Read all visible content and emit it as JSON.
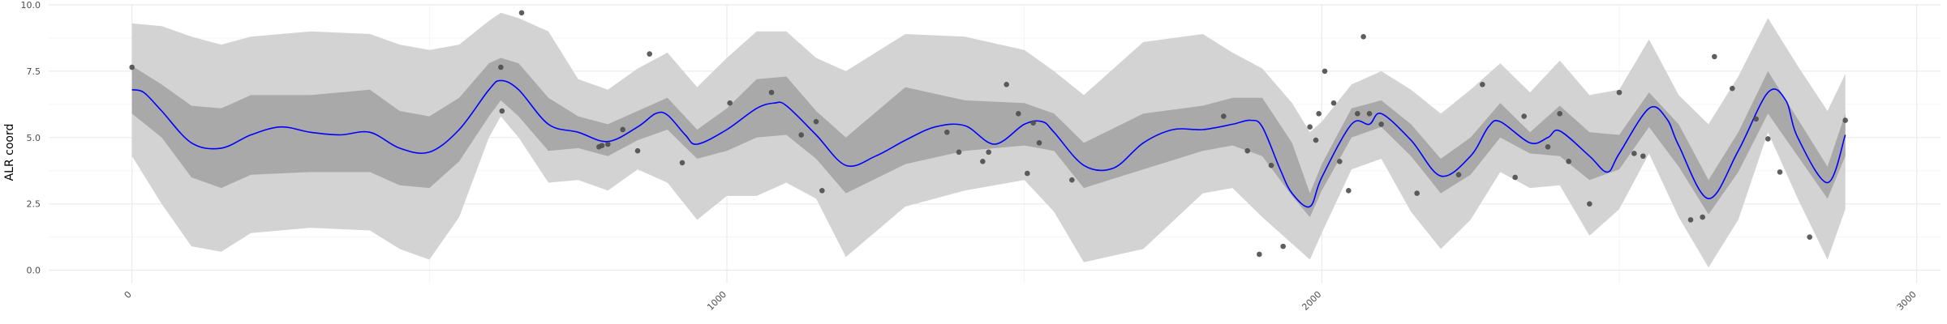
{
  "chart_data": {
    "type": "line",
    "title": "",
    "xlabel": "",
    "ylabel": "ALR coord",
    "xlim": [
      -140,
      3040
    ],
    "ylim": [
      -0.5,
      10.0
    ],
    "x_ticks": [
      0,
      1000,
      2000,
      3000
    ],
    "x_tick_labels": [
      "0",
      "1000",
      "2000",
      "3000"
    ],
    "y_ticks": [
      0.0,
      2.5,
      5.0,
      7.5,
      10.0
    ],
    "y_tick_labels": [
      "0.0",
      "2.5",
      "5.0",
      "7.5",
      "10.0"
    ],
    "grid": true,
    "legend": "none",
    "colors": {
      "mean_line": "#0000ff",
      "inner_band": "#a9a9a9",
      "outer_band": "#d3d3d3",
      "points": "#4d4d4d",
      "grid_major": "#ebebeb",
      "grid_minor": "#f5f5f5"
    },
    "mean_curve": {
      "x": [
        0,
        20,
        50,
        100,
        150,
        200,
        250,
        300,
        350,
        400,
        450,
        500,
        550,
        600,
        620,
        650,
        700,
        750,
        800,
        850,
        880,
        900,
        930,
        950,
        1000,
        1050,
        1080,
        1100,
        1150,
        1200,
        1250,
        1300,
        1350,
        1400,
        1450,
        1500,
        1530,
        1550,
        1600,
        1650,
        1700,
        1750,
        1800,
        1850,
        1880,
        1900,
        1930,
        1950,
        1980,
        2000,
        2050,
        2080,
        2100,
        2150,
        2200,
        2250,
        2280,
        2300,
        2350,
        2380,
        2400,
        2450,
        2480,
        2500,
        2550,
        2580,
        2600,
        2650,
        2700,
        2750,
        2780,
        2800,
        2850,
        2880
      ],
      "y": [
        6.8,
        6.7,
        6.0,
        4.8,
        4.6,
        5.1,
        5.4,
        5.2,
        5.1,
        5.2,
        4.6,
        4.45,
        5.3,
        6.8,
        7.15,
        6.8,
        5.5,
        5.2,
        4.85,
        5.4,
        5.9,
        5.85,
        5.1,
        4.75,
        5.3,
        6.1,
        6.3,
        6.2,
        5.1,
        3.95,
        4.3,
        4.9,
        5.4,
        5.45,
        4.75,
        5.5,
        5.6,
        5.2,
        3.95,
        3.85,
        4.8,
        5.3,
        5.3,
        5.5,
        5.65,
        5.4,
        3.8,
        2.9,
        2.4,
        3.5,
        5.5,
        5.5,
        5.9,
        4.9,
        3.55,
        4.3,
        5.4,
        5.6,
        4.8,
        5.0,
        5.25,
        4.3,
        3.7,
        4.4,
        6.1,
        5.7,
        4.7,
        2.7,
        4.5,
        6.7,
        6.4,
        5.0,
        3.3,
        5.1
      ]
    },
    "inner_band": {
      "x": [
        0,
        50,
        100,
        150,
        200,
        300,
        400,
        450,
        500,
        550,
        600,
        620,
        650,
        700,
        750,
        800,
        850,
        900,
        950,
        1000,
        1050,
        1100,
        1150,
        1200,
        1300,
        1400,
        1500,
        1550,
        1600,
        1700,
        1800,
        1850,
        1900,
        1950,
        1980,
        2000,
        2050,
        2100,
        2150,
        2200,
        2250,
        2300,
        2350,
        2400,
        2450,
        2500,
        2550,
        2600,
        2650,
        2700,
        2750,
        2800,
        2850,
        2880
      ],
      "lower": [
        5.9,
        5.0,
        3.5,
        3.1,
        3.6,
        3.7,
        3.7,
        3.2,
        3.1,
        4.1,
        5.8,
        6.4,
        5.8,
        4.5,
        4.6,
        4.3,
        4.9,
        5.3,
        4.2,
        4.5,
        5.0,
        5.1,
        4.2,
        2.9,
        4.0,
        4.5,
        4.7,
        4.5,
        3.1,
        3.8,
        4.5,
        4.7,
        4.3,
        2.8,
        2.0,
        3.0,
        5.0,
        5.4,
        4.3,
        2.9,
        3.6,
        5.0,
        4.4,
        4.3,
        3.4,
        3.8,
        5.4,
        3.9,
        2.1,
        3.7,
        5.9,
        4.3,
        2.7,
        4.3
      ],
      "upper": [
        7.7,
        7.0,
        6.2,
        6.1,
        6.6,
        6.6,
        6.8,
        6.0,
        5.8,
        6.5,
        7.8,
        8.0,
        7.8,
        6.5,
        5.8,
        5.5,
        6.0,
        6.5,
        5.3,
        6.1,
        7.2,
        7.3,
        6.0,
        5.0,
        6.9,
        6.4,
        6.3,
        5.9,
        4.8,
        5.9,
        6.2,
        6.5,
        6.5,
        4.8,
        2.9,
        4.0,
        6.1,
        6.4,
        5.5,
        4.2,
        5.0,
        6.3,
        5.2,
        6.2,
        5.2,
        5.1,
        6.7,
        5.5,
        3.4,
        5.2,
        7.5,
        5.7,
        3.9,
        5.9
      ]
    },
    "outer_band": {
      "x": [
        0,
        50,
        100,
        150,
        200,
        300,
        400,
        450,
        500,
        550,
        600,
        620,
        650,
        700,
        750,
        800,
        850,
        900,
        950,
        1000,
        1050,
        1100,
        1150,
        1200,
        1300,
        1400,
        1500,
        1550,
        1600,
        1700,
        1800,
        1850,
        1900,
        1950,
        1980,
        2000,
        2050,
        2100,
        2150,
        2200,
        2250,
        2300,
        2350,
        2400,
        2450,
        2500,
        2550,
        2600,
        2650,
        2700,
        2750,
        2800,
        2850,
        2880
      ],
      "lower": [
        4.3,
        2.5,
        0.9,
        0.7,
        1.4,
        1.6,
        1.5,
        0.8,
        0.4,
        2.0,
        5.0,
        5.8,
        5.0,
        3.3,
        3.4,
        3.0,
        3.8,
        3.3,
        1.9,
        2.8,
        2.8,
        3.3,
        2.7,
        0.5,
        2.4,
        3.0,
        3.4,
        2.2,
        0.3,
        0.8,
        2.9,
        3.1,
        2.0,
        1.0,
        0.4,
        1.4,
        3.8,
        4.2,
        2.2,
        0.8,
        1.9,
        3.7,
        3.1,
        3.2,
        1.3,
        2.3,
        4.4,
        2.0,
        0.1,
        1.9,
        5.2,
        2.7,
        0.4,
        2.3
      ],
      "upper": [
        9.3,
        9.2,
        8.8,
        8.5,
        8.8,
        9.0,
        8.9,
        8.5,
        8.3,
        8.5,
        9.4,
        9.7,
        9.5,
        9.0,
        7.2,
        6.8,
        7.6,
        8.2,
        6.9,
        8.0,
        9.0,
        9.0,
        8.0,
        7.5,
        8.9,
        8.8,
        8.3,
        7.5,
        6.6,
        8.6,
        8.9,
        8.2,
        7.6,
        6.3,
        5.2,
        5.6,
        7.0,
        7.5,
        6.8,
        5.9,
        6.8,
        7.8,
        6.7,
        7.9,
        6.6,
        6.8,
        8.7,
        6.6,
        5.5,
        7.3,
        9.5,
        7.7,
        6.0,
        7.4
      ]
    },
    "points": {
      "x": [
        0,
        620,
        622,
        655,
        785,
        790,
        800,
        825,
        850,
        870,
        925,
        1005,
        1075,
        1125,
        1150,
        1160,
        1370,
        1390,
        1430,
        1440,
        1470,
        1490,
        1505,
        1515,
        1525,
        1580,
        1835,
        1875,
        1895,
        1915,
        1935,
        1980,
        1990,
        1995,
        2005,
        2020,
        2030,
        2045,
        2060,
        2070,
        2080,
        2100,
        2160,
        2230,
        2270,
        2325,
        2340,
        2380,
        2400,
        2415,
        2450,
        2500,
        2525,
        2540,
        2620,
        2640,
        2660,
        2690,
        2730,
        2750,
        2770,
        2820,
        2880
      ],
      "y": [
        7.65,
        7.65,
        6.0,
        9.7,
        4.65,
        4.7,
        4.75,
        5.3,
        4.5,
        8.15,
        4.05,
        6.3,
        6.7,
        5.1,
        5.6,
        3.0,
        5.2,
        4.45,
        4.1,
        4.45,
        7.0,
        5.9,
        3.65,
        5.55,
        4.8,
        3.4,
        5.8,
        4.5,
        0.6,
        3.95,
        0.9,
        5.4,
        4.9,
        5.9,
        7.5,
        6.3,
        4.1,
        3.0,
        5.9,
        8.8,
        5.9,
        5.5,
        2.9,
        3.6,
        7.0,
        3.5,
        5.8,
        4.65,
        5.9,
        4.1,
        2.5,
        6.7,
        4.4,
        4.3,
        1.9,
        2.0,
        8.05,
        6.85,
        5.7,
        4.95,
        3.7,
        1.25,
        5.65
      ]
    }
  }
}
